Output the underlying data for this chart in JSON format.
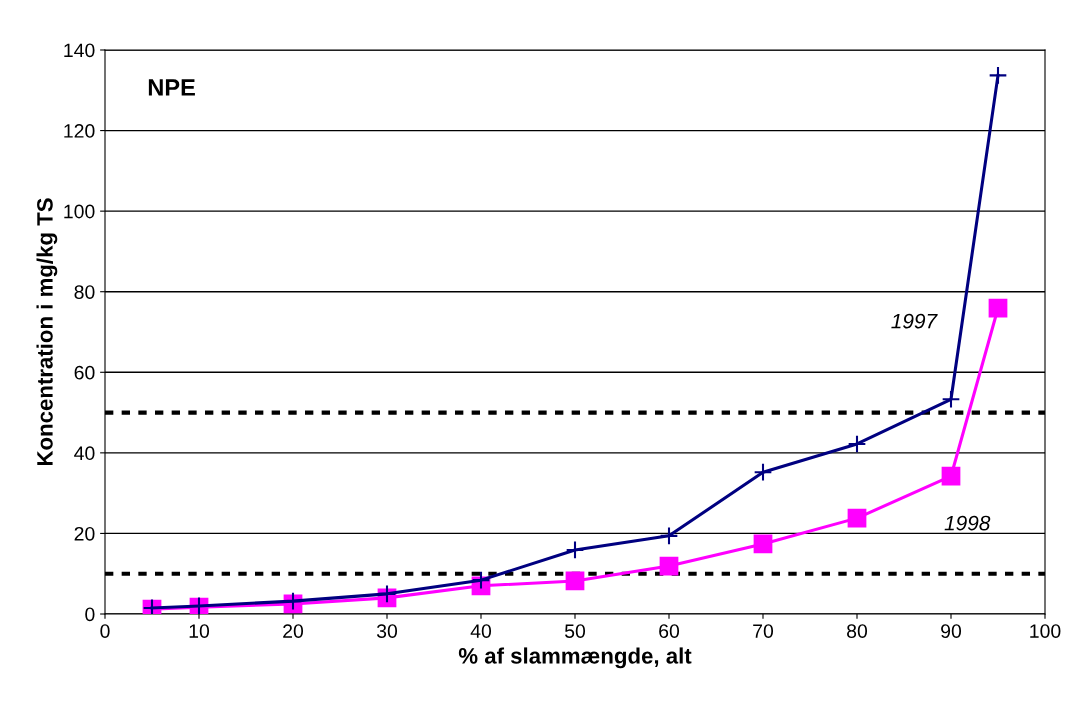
{
  "chart_data": {
    "type": "line",
    "xlabel": "% af slammængde, alt",
    "ylabel": "Koncentration i mg/kg TS",
    "annotations": [
      "NPE"
    ],
    "xlim": [
      0,
      100
    ],
    "xticks": [
      0,
      10,
      20,
      30,
      40,
      50,
      60,
      70,
      80,
      90,
      100
    ],
    "ylim": [
      0,
      140
    ],
    "yticks": [
      0,
      20,
      40,
      60,
      80,
      100,
      120,
      140
    ],
    "grid": "y",
    "legend": false,
    "x": [
      5,
      10,
      20,
      30,
      40,
      50,
      60,
      70,
      80,
      90,
      95
    ],
    "series": [
      {
        "name": "1997",
        "color": "#000080",
        "marker": "cross",
        "values": [
          1.5,
          2,
          3.2,
          5,
          8.4,
          15.9,
          19.4,
          35.2,
          42.2,
          53.3,
          133.7
        ]
      },
      {
        "name": "1998",
        "color": "#ff00ff",
        "marker": "square",
        "values": [
          1.2,
          1.7,
          2.5,
          4,
          7,
          8.2,
          11.9,
          17.4,
          23.8,
          34.2,
          75.9
        ]
      }
    ],
    "ref_lines": [
      {
        "axis": "y",
        "value": 50,
        "label": null,
        "color": "#000000",
        "line_style": "dotted"
      },
      {
        "axis": "y",
        "value": 10,
        "label": null,
        "color": "#000000",
        "line_style": "dotted"
      }
    ]
  }
}
